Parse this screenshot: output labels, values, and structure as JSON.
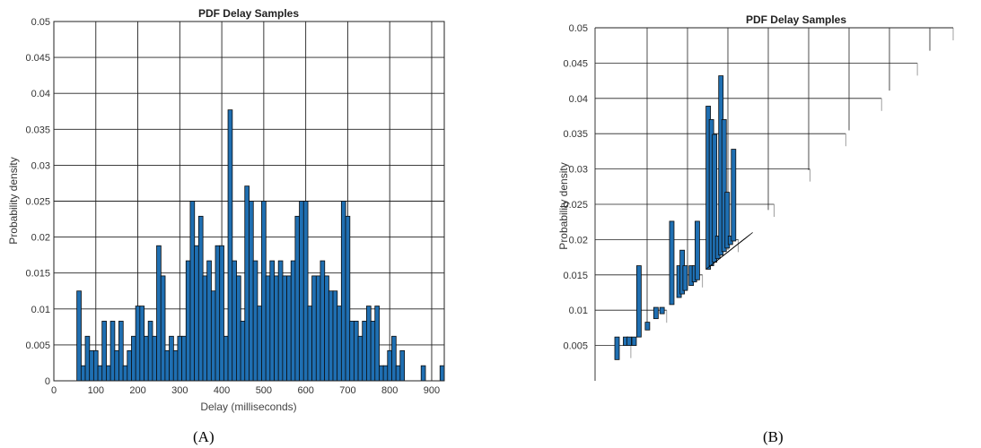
{
  "captions": {
    "a": "(A)",
    "b": "(B)"
  },
  "style": {
    "bar_fill": "#1f6fb2",
    "bar_edge": "#0b0b0b",
    "grid": "#222222"
  },
  "chart_data": [
    {
      "type": "bar",
      "panel": "A",
      "title": "PDF Delay Samples",
      "xlabel": "Delay (milliseconds)",
      "ylabel": "Probability density",
      "xlim": [
        0,
        930
      ],
      "ylim": [
        0,
        0.05
      ],
      "xticks": [
        0,
        100,
        200,
        300,
        400,
        500,
        600,
        700,
        800,
        900
      ],
      "yticks": [
        0,
        0.005,
        0.01,
        0.015,
        0.02,
        0.025,
        0.03,
        0.035,
        0.04,
        0.045,
        0.05
      ],
      "grid": true,
      "bin_width": 10.3,
      "bin_centers": [
        60,
        70,
        80,
        90,
        100,
        110,
        120,
        130,
        140,
        150,
        160,
        170,
        180,
        190,
        200,
        210,
        220,
        230,
        240,
        250,
        260,
        270,
        280,
        290,
        300,
        310,
        320,
        330,
        340,
        350,
        360,
        370,
        380,
        390,
        400,
        410,
        420,
        430,
        440,
        450,
        460,
        470,
        480,
        490,
        500,
        510,
        520,
        530,
        540,
        550,
        560,
        570,
        580,
        590,
        600,
        610,
        620,
        630,
        640,
        650,
        660,
        670,
        680,
        690,
        700,
        710,
        720,
        730,
        740,
        750,
        760,
        770,
        780,
        790,
        800,
        810,
        820,
        830,
        880,
        925
      ],
      "values": [
        0.0125,
        0.0021,
        0.0062,
        0.0042,
        0.0042,
        0.0021,
        0.0083,
        0.0021,
        0.0083,
        0.0042,
        0.0083,
        0.0021,
        0.0042,
        0.0062,
        0.0104,
        0.0104,
        0.0062,
        0.0083,
        0.0062,
        0.0188,
        0.0146,
        0.0042,
        0.0062,
        0.0042,
        0.0062,
        0.0062,
        0.0167,
        0.025,
        0.0188,
        0.0229,
        0.0146,
        0.0167,
        0.0125,
        0.0188,
        0.0188,
        0.0062,
        0.0377,
        0.0167,
        0.0146,
        0.0083,
        0.0271,
        0.025,
        0.0167,
        0.0104,
        0.025,
        0.0146,
        0.0167,
        0.0146,
        0.0167,
        0.0146,
        0.0146,
        0.0167,
        0.0229,
        0.025,
        0.025,
        0.0104,
        0.0146,
        0.0146,
        0.0167,
        0.0146,
        0.0125,
        0.0125,
        0.0104,
        0.025,
        0.0229,
        0.0083,
        0.0083,
        0.0062,
        0.0083,
        0.0104,
        0.0083,
        0.0104,
        0.0021,
        0.0021,
        0.0042,
        0.0062,
        0.0021,
        0.0042,
        0.0021,
        0.0021
      ]
    },
    {
      "type": "bar",
      "panel": "B",
      "title": "PDF Delay Samples",
      "xlabel": "",
      "ylabel": "Probability density",
      "ylim": [
        0,
        0.05
      ],
      "yticks": [
        0.005,
        0.01,
        0.015,
        0.02,
        0.025,
        0.03,
        0.035,
        0.04,
        0.045,
        0.05
      ],
      "note": "sheared/cropped rendering; plot clipped by a diagonal boundary, x-axis not visible",
      "grid": true,
      "bars": [
        {
          "x": 0.0,
          "top": 0.0062,
          "base": 0.003
        },
        {
          "x": 0.035,
          "top": 0.0062,
          "base": 0.005
        },
        {
          "x": 0.05,
          "top": 0.0062,
          "base": 0.005
        },
        {
          "x": 0.07,
          "top": 0.0062,
          "base": 0.005
        },
        {
          "x": 0.09,
          "top": 0.0163,
          "base": 0.0062
        },
        {
          "x": 0.125,
          "top": 0.0083,
          "base": 0.0072
        },
        {
          "x": 0.16,
          "top": 0.0104,
          "base": 0.0088
        },
        {
          "x": 0.185,
          "top": 0.0104,
          "base": 0.0095
        },
        {
          "x": 0.225,
          "top": 0.0226,
          "base": 0.0108
        },
        {
          "x": 0.255,
          "top": 0.0163,
          "base": 0.0118
        },
        {
          "x": 0.268,
          "top": 0.0185,
          "base": 0.0123
        },
        {
          "x": 0.28,
          "top": 0.0163,
          "base": 0.0128
        },
        {
          "x": 0.305,
          "top": 0.0163,
          "base": 0.0135
        },
        {
          "x": 0.318,
          "top": 0.0163,
          "base": 0.014
        },
        {
          "x": 0.33,
          "top": 0.0226,
          "base": 0.0143
        },
        {
          "x": 0.375,
          "top": 0.0389,
          "base": 0.0158
        },
        {
          "x": 0.388,
          "top": 0.037,
          "base": 0.0163
        },
        {
          "x": 0.401,
          "top": 0.0349,
          "base": 0.0168
        },
        {
          "x": 0.414,
          "top": 0.0205,
          "base": 0.0173
        },
        {
          "x": 0.427,
          "top": 0.0432,
          "base": 0.0178
        },
        {
          "x": 0.44,
          "top": 0.037,
          "base": 0.0183
        },
        {
          "x": 0.453,
          "top": 0.0267,
          "base": 0.0188
        },
        {
          "x": 0.466,
          "top": 0.0205,
          "base": 0.0193
        },
        {
          "x": 0.479,
          "top": 0.0328,
          "base": 0.0198
        }
      ]
    }
  ]
}
